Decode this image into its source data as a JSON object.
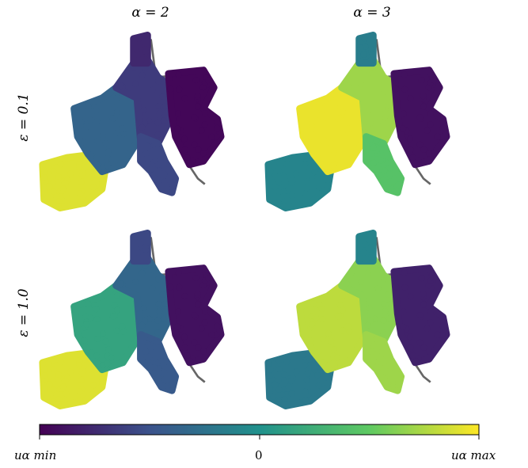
{
  "chart_data": {
    "type": "heatmap",
    "columns": [
      "α = 2",
      "α = 3"
    ],
    "rows": [
      "ε = 0.1",
      "ε = 1.0"
    ],
    "colorbar": {
      "colormap": "viridis",
      "tick_labels": [
        "u_α min",
        "0",
        "u_α max"
      ],
      "colors": [
        "#440154",
        "#3b528b",
        "#21918c",
        "#5ec962",
        "#fde725"
      ]
    },
    "regions": [
      "iberia",
      "france",
      "benelux-germany",
      "italy",
      "denmark-north",
      "poland-czech"
    ],
    "panels": [
      {
        "alpha": "α = 2",
        "epsilon": "ε = 0.1",
        "region_values": {
          "iberia": 0.95,
          "france": 0.32,
          "benelux-germany": 0.18,
          "italy": 0.22,
          "denmark-north": 0.12,
          "poland-czech": 0.02
        }
      },
      {
        "alpha": "α = 3",
        "epsilon": "ε = 0.1",
        "region_values": {
          "iberia": 0.45,
          "france": 0.97,
          "benelux-germany": 0.85,
          "italy": 0.72,
          "denmark-north": 0.42,
          "poland-czech": 0.05
        }
      },
      {
        "alpha": "α = 2",
        "epsilon": "ε = 1.0",
        "region_values": {
          "iberia": 0.95,
          "france": 0.58,
          "benelux-germany": 0.33,
          "italy": 0.28,
          "denmark-north": 0.22,
          "poland-czech": 0.05
        }
      },
      {
        "alpha": "α = 3",
        "epsilon": "ε = 1.0",
        "region_values": {
          "iberia": 0.4,
          "france": 0.9,
          "benelux-germany": 0.82,
          "italy": 0.85,
          "denmark-north": 0.45,
          "poland-czech": 0.1
        }
      }
    ]
  },
  "labels": {
    "col_left": "α = 2",
    "col_right": "α = 3",
    "row_top": "ε = 0.1",
    "row_bottom": "ε = 1.0",
    "cb_min": "uα min",
    "cb_zero": "0",
    "cb_max": "uα max"
  }
}
